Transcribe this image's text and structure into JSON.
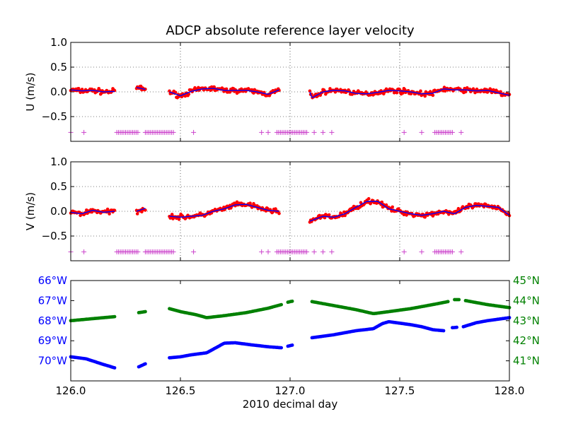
{
  "chart_data": {
    "title": "ADCP absolute reference layer velocity",
    "xlabel": "2010 decimal day",
    "xlim": [
      126.0,
      128.0
    ],
    "xticks": [
      "126.0",
      "126.5",
      "127.0",
      "127.5",
      "128.0"
    ],
    "xtick_values": [
      126.0,
      126.5,
      127.0,
      127.5,
      128.0
    ],
    "colors": {
      "raw": "#ff0000",
      "smooth": "#0000ff",
      "flag": "#cc44cc",
      "lon": "#0000ff",
      "lat": "#008000"
    },
    "panels": [
      {
        "type": "scatter",
        "ylabel": "U (m/s)",
        "ylim": [
          -1.0,
          1.0
        ],
        "yticks": [
          "1.0",
          "0.5",
          "0.0",
          "−0.5"
        ],
        "ytick_values": [
          1.0,
          0.5,
          0.0,
          -0.5
        ],
        "grid": true,
        "flag_y": -0.82,
        "segments": [
          [
            [
              126.0,
              0.04
            ],
            [
              126.05,
              0.02
            ],
            [
              126.1,
              0.03
            ],
            [
              126.15,
              0.0
            ],
            [
              126.2,
              0.01
            ]
          ],
          [
            [
              126.3,
              0.09
            ],
            [
              126.34,
              0.05
            ]
          ],
          [
            [
              126.45,
              0.0
            ],
            [
              126.5,
              -0.08
            ],
            [
              126.55,
              0.01
            ],
            [
              126.6,
              0.06
            ],
            [
              126.65,
              0.07
            ],
            [
              126.7,
              0.03
            ],
            [
              126.75,
              0.03
            ],
            [
              126.8,
              0.03
            ],
            [
              126.85,
              0.0
            ],
            [
              126.9,
              -0.05
            ],
            [
              126.95,
              0.04
            ]
          ],
          [
            [
              127.09,
              0.0
            ],
            [
              127.1,
              -0.12
            ],
            [
              127.15,
              0.0
            ],
            [
              127.2,
              0.03
            ],
            [
              127.25,
              0.02
            ],
            [
              127.3,
              -0.03
            ],
            [
              127.35,
              -0.04
            ],
            [
              127.4,
              -0.01
            ],
            [
              127.45,
              0.03
            ],
            [
              127.5,
              0.02
            ],
            [
              127.55,
              0.0
            ],
            [
              127.6,
              -0.04
            ],
            [
              127.65,
              -0.03
            ],
            [
              127.7,
              0.06
            ],
            [
              127.75,
              0.04
            ],
            [
              127.8,
              0.04
            ],
            [
              127.85,
              0.02
            ],
            [
              127.9,
              0.03
            ],
            [
              127.95,
              -0.02
            ],
            [
              128.0,
              -0.07
            ]
          ]
        ],
        "flags": [
          126.0,
          126.06,
          [
            126.21,
            126.31
          ],
          [
            126.34,
            126.47
          ],
          126.56,
          126.87,
          126.9,
          [
            126.94,
            127.08
          ],
          127.11,
          127.15,
          127.19,
          127.52,
          127.6,
          [
            127.66,
            127.74
          ],
          127.78
        ]
      },
      {
        "type": "scatter",
        "ylabel": "V (m/s)",
        "ylim": [
          -1.0,
          1.0
        ],
        "yticks": [
          "1.0",
          "0.5",
          "0.0",
          "−0.5"
        ],
        "ytick_values": [
          1.0,
          0.5,
          0.0,
          -0.5
        ],
        "grid": true,
        "flag_y": -0.82,
        "segments": [
          [
            [
              126.0,
              -0.02
            ],
            [
              126.05,
              -0.05
            ],
            [
              126.1,
              0.02
            ],
            [
              126.15,
              -0.02
            ],
            [
              126.2,
              0.0
            ]
          ],
          [
            [
              126.3,
              0.0
            ],
            [
              126.34,
              0.06
            ]
          ],
          [
            [
              126.45,
              -0.1
            ],
            [
              126.5,
              -0.12
            ],
            [
              126.55,
              -0.1
            ],
            [
              126.6,
              -0.08
            ],
            [
              126.65,
              0.0
            ],
            [
              126.7,
              0.05
            ],
            [
              126.75,
              0.13
            ],
            [
              126.8,
              0.14
            ],
            [
              126.85,
              0.08
            ],
            [
              126.9,
              0.02
            ],
            [
              126.95,
              0.0
            ]
          ],
          [
            [
              127.09,
              -0.2
            ],
            [
              127.15,
              -0.1
            ],
            [
              127.2,
              -0.12
            ],
            [
              127.25,
              -0.05
            ],
            [
              127.3,
              0.08
            ],
            [
              127.35,
              0.2
            ],
            [
              127.4,
              0.2
            ],
            [
              127.45,
              0.05
            ],
            [
              127.5,
              0.0
            ],
            [
              127.55,
              -0.05
            ],
            [
              127.6,
              -0.08
            ],
            [
              127.65,
              -0.05
            ],
            [
              127.7,
              0.0
            ],
            [
              127.75,
              -0.05
            ],
            [
              127.8,
              0.08
            ],
            [
              127.85,
              0.12
            ],
            [
              127.9,
              0.1
            ],
            [
              127.95,
              0.08
            ],
            [
              128.0,
              -0.08
            ]
          ]
        ],
        "flags": [
          126.0,
          126.06,
          [
            126.21,
            126.31
          ],
          [
            126.34,
            126.47
          ],
          126.56,
          126.87,
          126.9,
          [
            126.94,
            127.08
          ],
          127.11,
          127.15,
          127.19,
          127.52,
          127.6,
          [
            127.66,
            127.74
          ],
          127.78
        ]
      },
      {
        "type": "scatter",
        "ylim_lon": [
          -71.0,
          -66.0
        ],
        "yticks_lon": [
          "66°W",
          "67°W",
          "68°W",
          "69°W",
          "70°W"
        ],
        "ytick_lon_values": [
          -66,
          -67,
          -68,
          -69,
          -70
        ],
        "ylim_lat": [
          40.0,
          45.0
        ],
        "yticks_lat": [
          "45°N",
          "44°N",
          "43°N",
          "42°N",
          "41°N"
        ],
        "ytick_lat_values": [
          45,
          44,
          43,
          42,
          41
        ],
        "lon_segments": [
          [
            [
              126.0,
              -69.8
            ],
            [
              126.07,
              -69.9
            ],
            [
              126.14,
              -70.15
            ],
            [
              126.2,
              -70.35
            ]
          ],
          [
            [
              126.31,
              -70.3
            ],
            [
              126.34,
              -70.15
            ]
          ],
          [
            [
              126.45,
              -69.85
            ],
            [
              126.5,
              -69.8
            ],
            [
              126.55,
              -69.7
            ],
            [
              126.62,
              -69.6
            ],
            [
              126.7,
              -69.12
            ],
            [
              126.75,
              -69.1
            ],
            [
              126.82,
              -69.2
            ],
            [
              126.9,
              -69.3
            ],
            [
              126.96,
              -69.35
            ]
          ],
          [
            [
              126.99,
              -69.27
            ],
            [
              127.01,
              -69.22
            ]
          ],
          [
            [
              127.1,
              -68.85
            ],
            [
              127.2,
              -68.7
            ],
            [
              127.3,
              -68.5
            ],
            [
              127.38,
              -68.4
            ],
            [
              127.42,
              -68.15
            ],
            [
              127.45,
              -68.05
            ],
            [
              127.55,
              -68.2
            ],
            [
              127.6,
              -68.3
            ],
            [
              127.65,
              -68.45
            ],
            [
              127.7,
              -68.5
            ]
          ],
          [
            [
              127.74,
              -68.35
            ],
            [
              127.76,
              -68.33
            ]
          ],
          [
            [
              127.79,
              -68.3
            ],
            [
              127.85,
              -68.1
            ],
            [
              127.9,
              -68.0
            ],
            [
              128.0,
              -67.85
            ]
          ]
        ],
        "lat_segments": [
          [
            [
              126.0,
              43.0
            ],
            [
              126.1,
              43.1
            ],
            [
              126.2,
              43.2
            ]
          ],
          [
            [
              126.31,
              43.4
            ],
            [
              126.34,
              43.45
            ]
          ],
          [
            [
              126.45,
              43.6
            ],
            [
              126.5,
              43.45
            ],
            [
              126.57,
              43.3
            ],
            [
              126.62,
              43.15
            ],
            [
              126.7,
              43.25
            ],
            [
              126.8,
              43.4
            ],
            [
              126.9,
              43.62
            ],
            [
              126.96,
              43.8
            ]
          ],
          [
            [
              126.99,
              43.92
            ],
            [
              127.01,
              43.97
            ]
          ],
          [
            [
              127.1,
              43.95
            ],
            [
              127.2,
              43.75
            ],
            [
              127.3,
              43.55
            ],
            [
              127.38,
              43.35
            ],
            [
              127.45,
              43.45
            ],
            [
              127.55,
              43.6
            ],
            [
              127.65,
              43.8
            ],
            [
              127.72,
              43.95
            ]
          ],
          [
            [
              127.75,
              44.05
            ],
            [
              127.77,
              44.05
            ]
          ],
          [
            [
              127.8,
              44.0
            ],
            [
              127.9,
              43.8
            ],
            [
              128.0,
              43.65
            ]
          ]
        ]
      }
    ]
  }
}
